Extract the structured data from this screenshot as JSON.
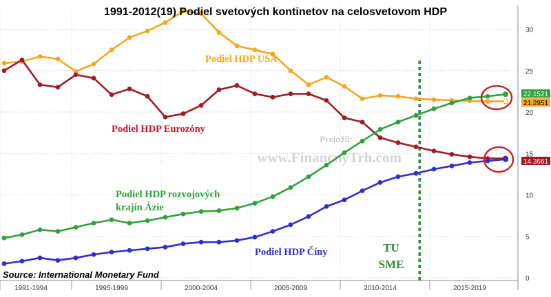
{
  "chart_data": {
    "type": "line",
    "title": "1991-2012(19) Podiel svetových kontinetov na celosvetovom HDP",
    "source": "Source: International Monetary Fund",
    "translated_by": "Preložil:",
    "watermark": "www.FinancnyTrh.com",
    "x_tick_labels": [
      "1991-1994",
      "1995-1999",
      "2000-2004",
      "2005-2009",
      "2010-2014",
      "2015-2019"
    ],
    "y_tick_labels": [
      "0",
      "5",
      "10",
      "15",
      "20",
      "25",
      "30"
    ],
    "ylim": [
      -2,
      33
    ],
    "xlim": [
      1991,
      2020
    ],
    "grid": true,
    "years": [
      1991,
      1992,
      1993,
      1994,
      1995,
      1996,
      1997,
      1998,
      1999,
      2000,
      2001,
      2002,
      2003,
      2004,
      2005,
      2006,
      2007,
      2008,
      2009,
      2010,
      2011,
      2012,
      2013,
      2014,
      2015,
      2016,
      2017,
      2018,
      2019
    ],
    "series": [
      {
        "name": "Podiel HDP USA",
        "color": "#f5a623",
        "values": [
          25.9,
          26.1,
          26.7,
          26.4,
          24.9,
          25.8,
          27.5,
          29.0,
          29.8,
          30.8,
          32.2,
          31.9,
          29.6,
          28.0,
          27.5,
          27.0,
          25.0,
          23.3,
          24.2,
          23.1,
          21.6,
          22.0,
          21.9,
          21.6,
          21.5,
          21.4,
          21.35,
          21.3,
          21.3
        ]
      },
      {
        "name": "Podiel HDP Eurozóny",
        "color": "#9e1c22",
        "values": [
          25.0,
          26.3,
          23.3,
          23.0,
          24.5,
          24.1,
          22.1,
          22.8,
          21.9,
          19.4,
          19.8,
          20.8,
          22.7,
          23.2,
          22.2,
          21.8,
          22.2,
          22.2,
          21.4,
          19.3,
          18.8,
          16.9,
          16.3,
          15.8,
          15.3,
          14.9,
          14.6,
          14.4,
          14.4
        ]
      },
      {
        "name": "Podiel HDP rozvojových krajín Ázie",
        "color": "#2ea23a",
        "values": [
          4.8,
          5.2,
          5.8,
          5.6,
          6.1,
          6.6,
          7.0,
          6.6,
          6.9,
          7.3,
          7.7,
          8.0,
          8.1,
          8.4,
          9.0,
          9.8,
          10.9,
          12.2,
          13.6,
          15.1,
          16.5,
          17.9,
          18.8,
          19.6,
          20.4,
          21.1,
          21.7,
          21.9,
          22.15
        ]
      },
      {
        "name": "Podiel HDP Číny",
        "color": "#2d2dd1",
        "values": [
          1.7,
          2.0,
          2.4,
          2.1,
          2.4,
          2.8,
          3.1,
          3.3,
          3.5,
          3.7,
          4.1,
          4.3,
          4.3,
          4.5,
          4.9,
          5.6,
          6.4,
          7.4,
          8.6,
          9.4,
          10.5,
          11.5,
          12.2,
          12.6,
          13.1,
          13.5,
          13.9,
          14.1,
          14.3
        ]
      }
    ],
    "series_labels": [
      {
        "text": "Podiel HDP USA",
        "color": "#f5a623"
      },
      {
        "text": "Podiel HDP Eurozóny",
        "color": "#c0192a"
      },
      {
        "text": "Podiel HDP rozvojových",
        "color": "#2ea23a"
      },
      {
        "text": "krajín Ázie",
        "color": "#2ea23a"
      },
      {
        "text": "Podiel HDP Číny",
        "color": "#2d2dd1"
      }
    ],
    "value_labels": [
      {
        "text": "22.1521",
        "value": 22.1521,
        "bg": "#2ea23a"
      },
      {
        "text": "21.2951",
        "value": 21.2951,
        "bg": "#f5a623"
      },
      {
        "text": "14.3661",
        "value": 14.3661,
        "bg": "#9e1c22"
      }
    ],
    "annotation": {
      "line1": "TU",
      "line2": "SME",
      "year": 2014.2,
      "color": "#2e8b3a"
    }
  }
}
